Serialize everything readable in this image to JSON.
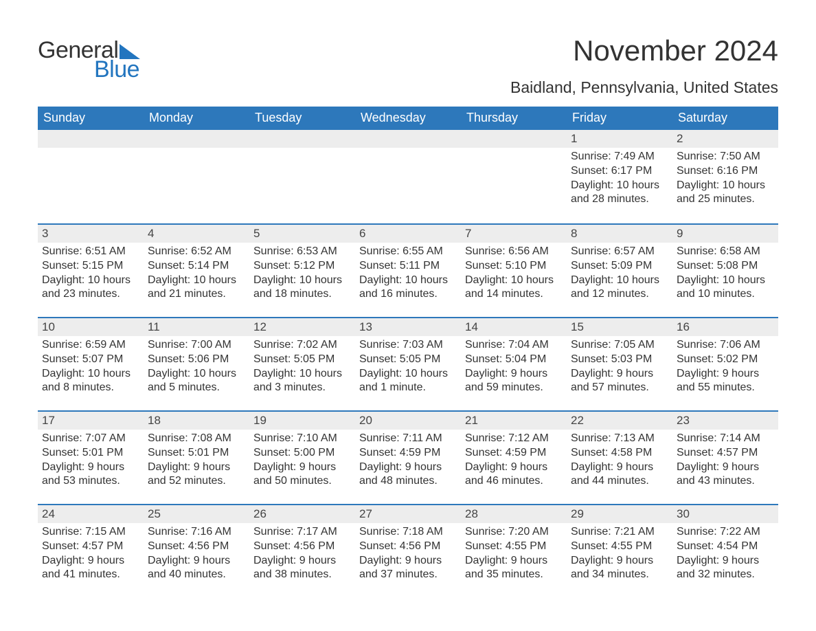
{
  "brand": {
    "word1": "General",
    "word2": "Blue",
    "accent_color": "#2275bf"
  },
  "title": "November 2024",
  "location": "Baidland, Pennsylvania, United States",
  "header_bg": "#2d78bb",
  "daynum_bg": "#ededed",
  "text_color": "#333333",
  "days_of_week": [
    "Sunday",
    "Monday",
    "Tuesday",
    "Wednesday",
    "Thursday",
    "Friday",
    "Saturday"
  ],
  "weeks": [
    [
      null,
      null,
      null,
      null,
      null,
      {
        "n": "1",
        "sunrise": "Sunrise: 7:49 AM",
        "sunset": "Sunset: 6:17 PM",
        "day1": "Daylight: 10 hours",
        "day2": "and 28 minutes."
      },
      {
        "n": "2",
        "sunrise": "Sunrise: 7:50 AM",
        "sunset": "Sunset: 6:16 PM",
        "day1": "Daylight: 10 hours",
        "day2": "and 25 minutes."
      }
    ],
    [
      {
        "n": "3",
        "sunrise": "Sunrise: 6:51 AM",
        "sunset": "Sunset: 5:15 PM",
        "day1": "Daylight: 10 hours",
        "day2": "and 23 minutes."
      },
      {
        "n": "4",
        "sunrise": "Sunrise: 6:52 AM",
        "sunset": "Sunset: 5:14 PM",
        "day1": "Daylight: 10 hours",
        "day2": "and 21 minutes."
      },
      {
        "n": "5",
        "sunrise": "Sunrise: 6:53 AM",
        "sunset": "Sunset: 5:12 PM",
        "day1": "Daylight: 10 hours",
        "day2": "and 18 minutes."
      },
      {
        "n": "6",
        "sunrise": "Sunrise: 6:55 AM",
        "sunset": "Sunset: 5:11 PM",
        "day1": "Daylight: 10 hours",
        "day2": "and 16 minutes."
      },
      {
        "n": "7",
        "sunrise": "Sunrise: 6:56 AM",
        "sunset": "Sunset: 5:10 PM",
        "day1": "Daylight: 10 hours",
        "day2": "and 14 minutes."
      },
      {
        "n": "8",
        "sunrise": "Sunrise: 6:57 AM",
        "sunset": "Sunset: 5:09 PM",
        "day1": "Daylight: 10 hours",
        "day2": "and 12 minutes."
      },
      {
        "n": "9",
        "sunrise": "Sunrise: 6:58 AM",
        "sunset": "Sunset: 5:08 PM",
        "day1": "Daylight: 10 hours",
        "day2": "and 10 minutes."
      }
    ],
    [
      {
        "n": "10",
        "sunrise": "Sunrise: 6:59 AM",
        "sunset": "Sunset: 5:07 PM",
        "day1": "Daylight: 10 hours",
        "day2": "and 8 minutes."
      },
      {
        "n": "11",
        "sunrise": "Sunrise: 7:00 AM",
        "sunset": "Sunset: 5:06 PM",
        "day1": "Daylight: 10 hours",
        "day2": "and 5 minutes."
      },
      {
        "n": "12",
        "sunrise": "Sunrise: 7:02 AM",
        "sunset": "Sunset: 5:05 PM",
        "day1": "Daylight: 10 hours",
        "day2": "and 3 minutes."
      },
      {
        "n": "13",
        "sunrise": "Sunrise: 7:03 AM",
        "sunset": "Sunset: 5:05 PM",
        "day1": "Daylight: 10 hours",
        "day2": "and 1 minute."
      },
      {
        "n": "14",
        "sunrise": "Sunrise: 7:04 AM",
        "sunset": "Sunset: 5:04 PM",
        "day1": "Daylight: 9 hours",
        "day2": "and 59 minutes."
      },
      {
        "n": "15",
        "sunrise": "Sunrise: 7:05 AM",
        "sunset": "Sunset: 5:03 PM",
        "day1": "Daylight: 9 hours",
        "day2": "and 57 minutes."
      },
      {
        "n": "16",
        "sunrise": "Sunrise: 7:06 AM",
        "sunset": "Sunset: 5:02 PM",
        "day1": "Daylight: 9 hours",
        "day2": "and 55 minutes."
      }
    ],
    [
      {
        "n": "17",
        "sunrise": "Sunrise: 7:07 AM",
        "sunset": "Sunset: 5:01 PM",
        "day1": "Daylight: 9 hours",
        "day2": "and 53 minutes."
      },
      {
        "n": "18",
        "sunrise": "Sunrise: 7:08 AM",
        "sunset": "Sunset: 5:01 PM",
        "day1": "Daylight: 9 hours",
        "day2": "and 52 minutes."
      },
      {
        "n": "19",
        "sunrise": "Sunrise: 7:10 AM",
        "sunset": "Sunset: 5:00 PM",
        "day1": "Daylight: 9 hours",
        "day2": "and 50 minutes."
      },
      {
        "n": "20",
        "sunrise": "Sunrise: 7:11 AM",
        "sunset": "Sunset: 4:59 PM",
        "day1": "Daylight: 9 hours",
        "day2": "and 48 minutes."
      },
      {
        "n": "21",
        "sunrise": "Sunrise: 7:12 AM",
        "sunset": "Sunset: 4:59 PM",
        "day1": "Daylight: 9 hours",
        "day2": "and 46 minutes."
      },
      {
        "n": "22",
        "sunrise": "Sunrise: 7:13 AM",
        "sunset": "Sunset: 4:58 PM",
        "day1": "Daylight: 9 hours",
        "day2": "and 44 minutes."
      },
      {
        "n": "23",
        "sunrise": "Sunrise: 7:14 AM",
        "sunset": "Sunset: 4:57 PM",
        "day1": "Daylight: 9 hours",
        "day2": "and 43 minutes."
      }
    ],
    [
      {
        "n": "24",
        "sunrise": "Sunrise: 7:15 AM",
        "sunset": "Sunset: 4:57 PM",
        "day1": "Daylight: 9 hours",
        "day2": "and 41 minutes."
      },
      {
        "n": "25",
        "sunrise": "Sunrise: 7:16 AM",
        "sunset": "Sunset: 4:56 PM",
        "day1": "Daylight: 9 hours",
        "day2": "and 40 minutes."
      },
      {
        "n": "26",
        "sunrise": "Sunrise: 7:17 AM",
        "sunset": "Sunset: 4:56 PM",
        "day1": "Daylight: 9 hours",
        "day2": "and 38 minutes."
      },
      {
        "n": "27",
        "sunrise": "Sunrise: 7:18 AM",
        "sunset": "Sunset: 4:56 PM",
        "day1": "Daylight: 9 hours",
        "day2": "and 37 minutes."
      },
      {
        "n": "28",
        "sunrise": "Sunrise: 7:20 AM",
        "sunset": "Sunset: 4:55 PM",
        "day1": "Daylight: 9 hours",
        "day2": "and 35 minutes."
      },
      {
        "n": "29",
        "sunrise": "Sunrise: 7:21 AM",
        "sunset": "Sunset: 4:55 PM",
        "day1": "Daylight: 9 hours",
        "day2": "and 34 minutes."
      },
      {
        "n": "30",
        "sunrise": "Sunrise: 7:22 AM",
        "sunset": "Sunset: 4:54 PM",
        "day1": "Daylight: 9 hours",
        "day2": "and 32 minutes."
      }
    ]
  ]
}
